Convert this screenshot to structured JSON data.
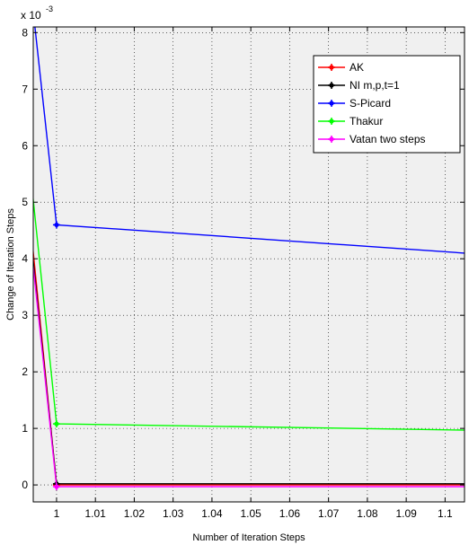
{
  "chart_data": {
    "type": "line",
    "title": "",
    "xlabel": "Number of Iteration Steps",
    "ylabel": "Change of Iteration Steps",
    "y_exponent_label": "x 10",
    "y_exponent_power": "-3",
    "xlim": [
      0.994,
      1.105
    ],
    "ylim": [
      -0.3,
      8.1
    ],
    "xticks": [
      1,
      1.01,
      1.02,
      1.03,
      1.04,
      1.05,
      1.06,
      1.07,
      1.08,
      1.09,
      1.1
    ],
    "xtick_labels": [
      "1",
      "1.01",
      "1.02",
      "1.03",
      "1.04",
      "1.05",
      "1.06",
      "1.07",
      "1.08",
      "1.09",
      "1.1"
    ],
    "yticks": [
      0,
      1,
      2,
      3,
      4,
      5,
      6,
      7,
      8
    ],
    "ytick_labels": [
      "0",
      "1",
      "2",
      "3",
      "4",
      "5",
      "6",
      "7",
      "8"
    ],
    "grid": true,
    "legend_position": "top-right",
    "plot_background": "#f0f0f0",
    "series": [
      {
        "name": "AK",
        "color": "#ff0000",
        "x": [
          0.993,
          1,
          1.105
        ],
        "y": [
          4.8,
          0,
          0
        ],
        "markers_x": [
          1
        ]
      },
      {
        "name": "NI m,p,t=1",
        "color": "#000000",
        "x": [
          0.993,
          1,
          1.105
        ],
        "y": [
          4.6,
          0.02,
          0.02
        ],
        "markers_x": [
          1
        ]
      },
      {
        "name": "S-Picard",
        "color": "#0000ff",
        "x": [
          0.993,
          1,
          1.105
        ],
        "y": [
          9.0,
          4.6,
          4.1
        ],
        "markers_x": [
          1
        ]
      },
      {
        "name": "Thakur",
        "color": "#00ff00",
        "x": [
          0.993,
          1,
          1.105
        ],
        "y": [
          5.7,
          1.08,
          0.97
        ],
        "markers_x": [
          1
        ]
      },
      {
        "name": "Vatan two steps",
        "color": "#ff00ff",
        "x": [
          0.993,
          1,
          1.105
        ],
        "y": [
          4.5,
          -0.03,
          -0.03
        ],
        "markers_x": [
          1
        ]
      }
    ]
  }
}
